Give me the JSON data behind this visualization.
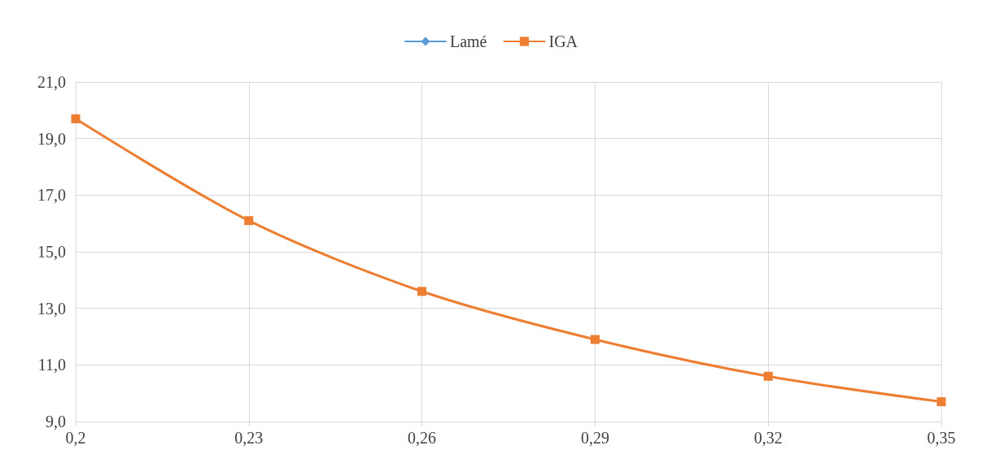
{
  "chart_data": {
    "type": "line",
    "x": [
      0.2,
      0.23,
      0.26,
      0.29,
      0.32,
      0.35
    ],
    "series": [
      {
        "name": "Lamé",
        "color": "#5b9bd5",
        "marker": "diamond",
        "values": [
          null,
          null,
          null,
          null,
          null,
          null
        ]
      },
      {
        "name": "IGA",
        "color": "#ed7d31",
        "marker": "square",
        "values": [
          19.7,
          16.1,
          13.6,
          11.9,
          10.6,
          9.7
        ]
      }
    ],
    "xlim": [
      0.2,
      0.35
    ],
    "xticks": [
      {
        "value": 0.2,
        "label": "0,2"
      },
      {
        "value": 0.23,
        "label": "0,23"
      },
      {
        "value": 0.26,
        "label": "0,26"
      },
      {
        "value": 0.29,
        "label": "0,29"
      },
      {
        "value": 0.32,
        "label": "0,32"
      },
      {
        "value": 0.35,
        "label": "0,35"
      }
    ],
    "ylim": [
      9,
      21
    ],
    "yticks": [
      {
        "value": 9,
        "label": "9,0"
      },
      {
        "value": 11,
        "label": "11,0"
      },
      {
        "value": 13,
        "label": "13,0"
      },
      {
        "value": 15,
        "label": "15,0"
      },
      {
        "value": 17,
        "label": "17,0"
      },
      {
        "value": 19,
        "label": "19,0"
      },
      {
        "value": 21,
        "label": "21,0"
      }
    ],
    "grid": true,
    "legend": "top",
    "line_style": "solid"
  }
}
